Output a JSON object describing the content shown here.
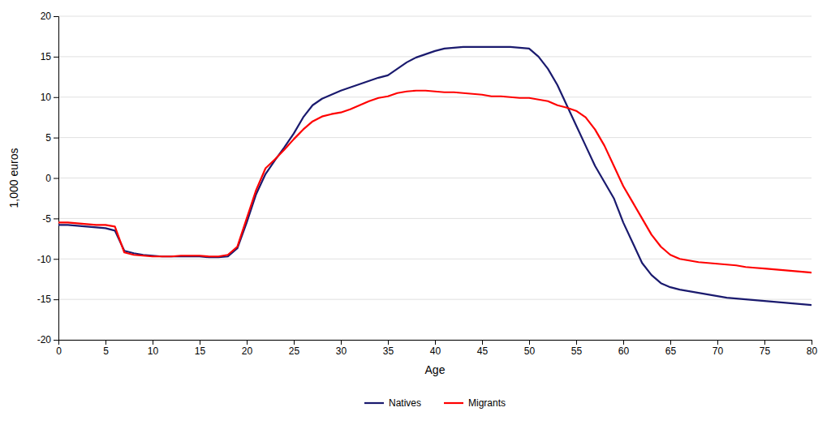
{
  "chart_data": {
    "type": "line",
    "xlabel": "Age",
    "ylabel": "1,000 euros",
    "x": [
      0,
      1,
      2,
      3,
      4,
      5,
      6,
      7,
      8,
      9,
      10,
      11,
      12,
      13,
      14,
      15,
      16,
      17,
      18,
      19,
      20,
      21,
      22,
      23,
      24,
      25,
      26,
      27,
      28,
      29,
      30,
      31,
      32,
      33,
      34,
      35,
      36,
      37,
      38,
      39,
      40,
      41,
      42,
      43,
      44,
      45,
      46,
      47,
      48,
      49,
      50,
      51,
      52,
      53,
      54,
      55,
      56,
      57,
      58,
      59,
      60,
      61,
      62,
      63,
      64,
      65,
      66,
      67,
      68,
      69,
      70,
      71,
      72,
      73,
      74,
      75,
      76,
      77,
      78,
      79,
      80
    ],
    "series": [
      {
        "name": "Natives",
        "color": "#1a1a6e",
        "values": [
          -5.8,
          -5.8,
          -5.9,
          -6.0,
          -6.1,
          -6.2,
          -6.5,
          -9.0,
          -9.3,
          -9.5,
          -9.6,
          -9.7,
          -9.7,
          -9.7,
          -9.7,
          -9.7,
          -9.8,
          -9.8,
          -9.7,
          -8.7,
          -5.5,
          -2.0,
          0.5,
          2.2,
          3.8,
          5.5,
          7.5,
          9.0,
          9.8,
          10.3,
          10.8,
          11.2,
          11.6,
          12.0,
          12.4,
          12.7,
          13.5,
          14.3,
          14.9,
          15.3,
          15.7,
          16.0,
          16.1,
          16.2,
          16.2,
          16.2,
          16.2,
          16.2,
          16.2,
          16.1,
          16.0,
          15.0,
          13.5,
          11.5,
          9.0,
          6.5,
          4.0,
          1.5,
          -0.5,
          -2.5,
          -5.5,
          -8.0,
          -10.5,
          -12.0,
          -13.0,
          -13.5,
          -13.8,
          -14.0,
          -14.2,
          -14.4,
          -14.6,
          -14.8,
          -14.9,
          -15.0,
          -15.1,
          -15.2,
          -15.3,
          -15.4,
          -15.5,
          -15.6,
          -15.7
        ]
      },
      {
        "name": "Migrants",
        "color": "#ff0000",
        "values": [
          -5.5,
          -5.5,
          -5.6,
          -5.7,
          -5.8,
          -5.8,
          -6.0,
          -9.2,
          -9.5,
          -9.6,
          -9.7,
          -9.7,
          -9.7,
          -9.6,
          -9.6,
          -9.6,
          -9.7,
          -9.7,
          -9.5,
          -8.5,
          -5.0,
          -1.5,
          1.2,
          2.3,
          3.5,
          4.8,
          6.0,
          7.0,
          7.6,
          7.9,
          8.1,
          8.5,
          9.0,
          9.5,
          9.9,
          10.1,
          10.5,
          10.7,
          10.8,
          10.8,
          10.7,
          10.6,
          10.6,
          10.5,
          10.4,
          10.3,
          10.1,
          10.1,
          10.0,
          9.9,
          9.9,
          9.7,
          9.5,
          9.0,
          8.7,
          8.3,
          7.5,
          6.0,
          4.0,
          1.5,
          -1.0,
          -3.0,
          -5.0,
          -7.0,
          -8.5,
          -9.5,
          -10.0,
          -10.2,
          -10.4,
          -10.5,
          -10.6,
          -10.7,
          -10.8,
          -11.0,
          -11.1,
          -11.2,
          -11.3,
          -11.4,
          -11.5,
          -11.6,
          -11.7
        ]
      }
    ],
    "xlim": [
      0,
      80
    ],
    "ylim": [
      -20,
      20
    ],
    "xticks": [
      0,
      5,
      10,
      15,
      20,
      25,
      30,
      35,
      40,
      45,
      50,
      55,
      60,
      65,
      70,
      75,
      80
    ],
    "yticks": [
      -20,
      -15,
      -10,
      -5,
      0,
      5,
      10,
      15,
      20
    ],
    "grid": true,
    "legend": "bottom"
  }
}
